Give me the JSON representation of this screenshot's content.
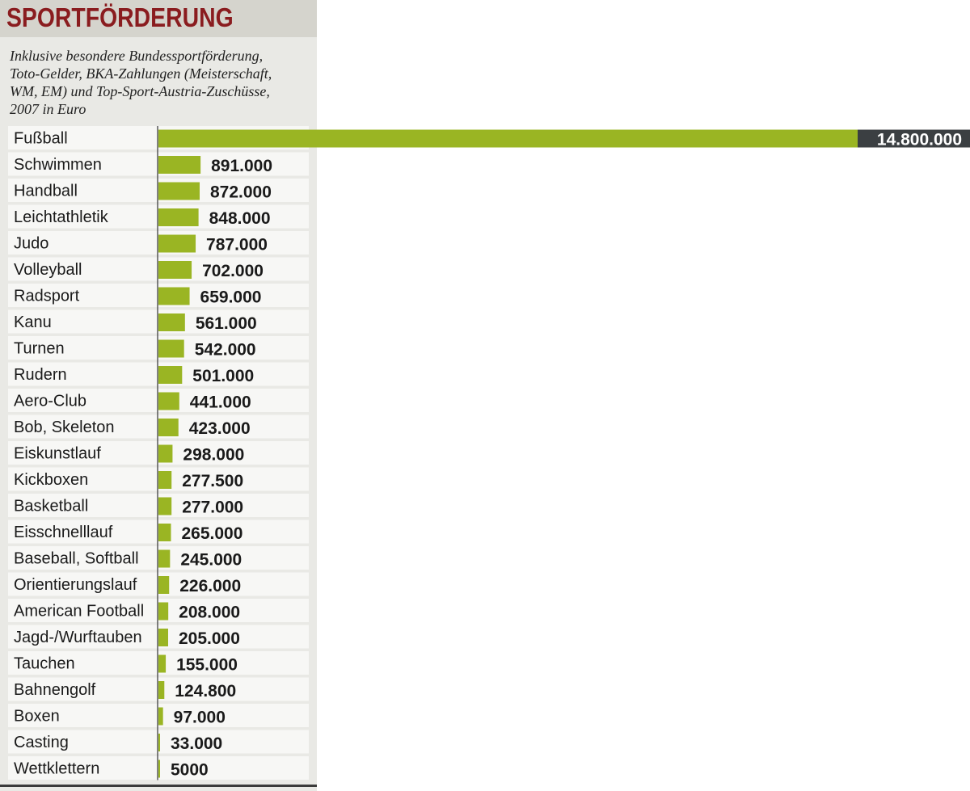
{
  "title": "SPORTFÖRDERUNG",
  "subtitle_lines": [
    "Inklusive besondere Bundessportförderung,",
    "Toto-Gelder, BKA-Zahlungen (Meisterschaft,",
    "WM, EM) und Top-Sport-Austria-Zuschüsse,",
    "2007 in Euro"
  ],
  "colors": {
    "bar": "#9ab523",
    "title": "#8a1c1f",
    "value_box": "#3b3f42",
    "row_stripe": "#f7f7f5"
  },
  "chart_data": {
    "type": "bar",
    "orientation": "horizontal",
    "categories": [
      "Fußball",
      "Schwimmen",
      "Handball",
      "Leichtathletik",
      "Judo",
      "Volleyball",
      "Radsport",
      "Kanu",
      "Turnen",
      "Rudern",
      "Aero-Club",
      "Bob, Skeleton",
      "Eiskunstlauf",
      "Kickboxen",
      "Basketball",
      "Eisschnelllauf",
      "Baseball, Softball",
      "Orientierungslauf",
      "American Football",
      "Jagd-/Wurftauben",
      "Tauchen",
      "Bahnengolf",
      "Boxen",
      "Casting",
      "Wettklettern"
    ],
    "values": [
      14800000,
      891000,
      872000,
      848000,
      787000,
      702000,
      659000,
      561000,
      542000,
      501000,
      441000,
      423000,
      298000,
      277500,
      277000,
      265000,
      245000,
      226000,
      208000,
      205000,
      155000,
      124800,
      97000,
      33000,
      5000
    ],
    "value_labels": [
      "14.800.000",
      "891.000",
      "872.000",
      "848.000",
      "787.000",
      "702.000",
      "659.000",
      "561.000",
      "542.000",
      "501.000",
      "441.000",
      "423.000",
      "298.000",
      "277.500",
      "277.000",
      "265.000",
      "245.000",
      "226.000",
      "208.000",
      "205.000",
      "155.000",
      "124.800",
      "97.000",
      "33.000",
      "5000"
    ],
    "title": "SPORTFÖRDERUNG",
    "xlabel": "",
    "ylabel": "",
    "grid": false,
    "legend": "none"
  }
}
